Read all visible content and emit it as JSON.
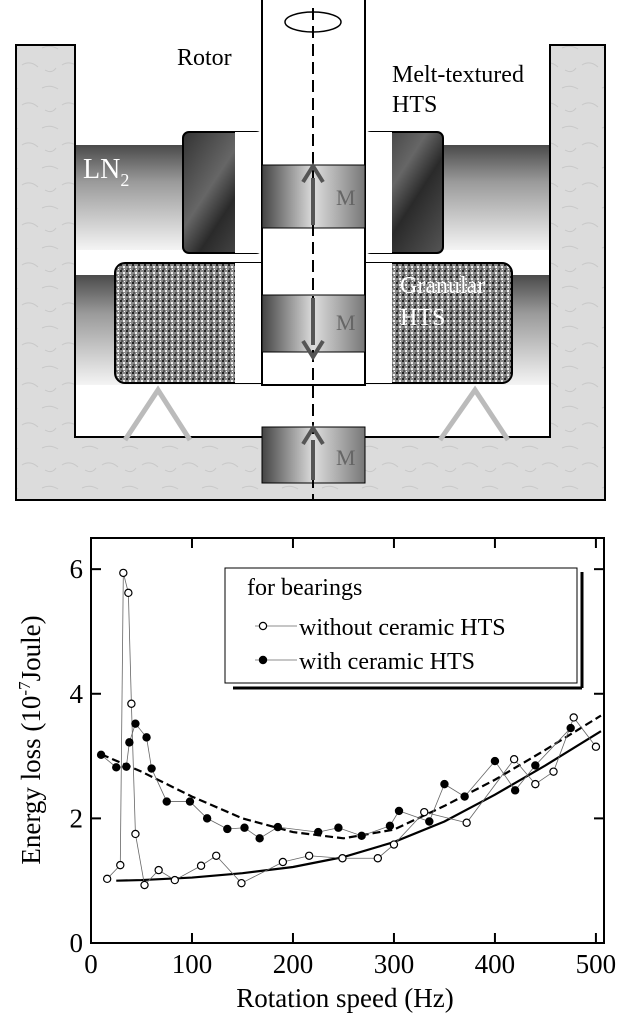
{
  "diagram": {
    "rotor": "Rotor",
    "melt_textured": [
      "Melt-textured",
      "HTS"
    ],
    "ln2": {
      "text": "LN",
      "subscript": "2"
    },
    "granular": [
      "Granular",
      "HTS"
    ],
    "magnet": [
      "M",
      "M",
      "M"
    ]
  },
  "chart_data": {
    "type": "scatter",
    "x_label": "Rotation speed   (Hz)",
    "y_label": {
      "text": "Energy loss  (10",
      "superscript": "-7",
      "suffix": "Joule)"
    },
    "legend_title": "for bearings",
    "legend": "upper right",
    "xlim": [
      0,
      508
    ],
    "ylim": [
      0,
      6.5
    ],
    "xticks": [
      0,
      100,
      200,
      300,
      400,
      500
    ],
    "yticks": [
      0,
      2,
      4,
      6
    ],
    "series": [
      {
        "name": "without ceramic HTS",
        "color": "#000000",
        "marker": "open",
        "x": [
          16,
          29,
          32,
          37,
          40,
          44,
          53,
          67,
          83,
          109,
          124,
          149,
          190,
          216,
          249,
          284,
          300,
          330,
          372,
          419,
          440,
          458,
          478,
          500
        ],
        "values": [
          1.03,
          1.25,
          5.94,
          5.62,
          3.84,
          1.75,
          0.93,
          1.17,
          1.01,
          1.24,
          1.4,
          0.96,
          1.3,
          1.4,
          1.36,
          1.36,
          1.58,
          2.1,
          1.93,
          2.95,
          2.55,
          2.75,
          3.62,
          3.15
        ]
      },
      {
        "name": "with ceramic HTS",
        "color": "#000000",
        "marker": "filled",
        "x": [
          10,
          25,
          35,
          38,
          44,
          55,
          60,
          75,
          98,
          115,
          135,
          152,
          167,
          185,
          225,
          245,
          268,
          296,
          305,
          335,
          350,
          370,
          400,
          420,
          440,
          475
        ],
        "values": [
          3.02,
          2.82,
          2.83,
          3.22,
          3.52,
          3.3,
          2.8,
          2.27,
          2.27,
          2.0,
          1.83,
          1.85,
          1.68,
          1.86,
          1.78,
          1.85,
          1.72,
          1.88,
          2.12,
          1.95,
          2.55,
          2.35,
          2.92,
          2.45,
          2.85,
          3.45
        ]
      }
    ],
    "curves": [
      {
        "dash": false,
        "x": [
          25,
          50,
          100,
          150,
          200,
          250,
          300,
          350,
          400,
          450,
          505
        ],
        "values": [
          1.0,
          1.01,
          1.05,
          1.12,
          1.22,
          1.38,
          1.62,
          1.95,
          2.38,
          2.85,
          3.4
        ]
      },
      {
        "dash": true,
        "x": [
          10,
          50,
          100,
          150,
          200,
          250,
          300,
          350,
          400,
          450,
          505
        ],
        "values": [
          3.03,
          2.75,
          2.35,
          2.0,
          1.78,
          1.68,
          1.82,
          2.2,
          2.62,
          3.1,
          3.65
        ]
      }
    ]
  }
}
